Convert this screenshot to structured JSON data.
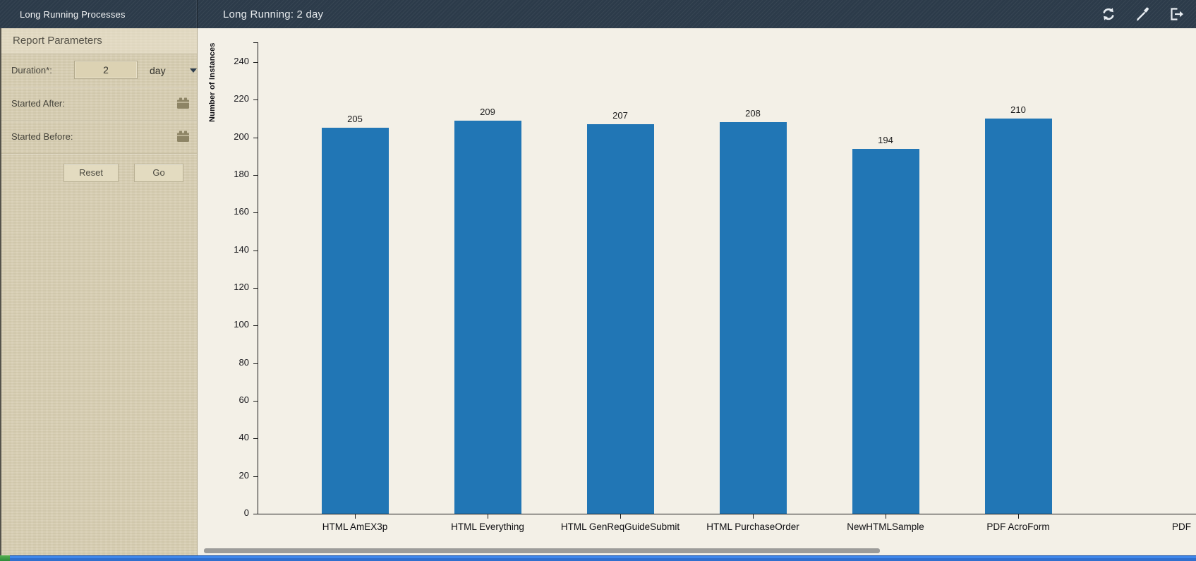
{
  "window": {
    "panel_title": "Long Running Processes",
    "view_title": "Long Running: 2 day"
  },
  "sidebar": {
    "header": "Report Parameters",
    "duration_label": "Duration*:",
    "duration_value": "2",
    "duration_unit": "day",
    "started_after_label": "Started After:",
    "started_before_label": "Started Before:",
    "reset_label": "Reset",
    "go_label": "Go"
  },
  "chart_data": {
    "type": "bar",
    "title": "",
    "xlabel": "",
    "ylabel": "Number of Instances",
    "categories": [
      "HTML AmEX3p",
      "HTML Everything",
      "HTML GenReqGuideSubmit",
      "HTML PurchaseOrder",
      "NewHTMLSample",
      "PDF AcroForm"
    ],
    "values": [
      205,
      209,
      207,
      208,
      194,
      210
    ],
    "partial_next_category": "PDF",
    "ylim": [
      0,
      250
    ],
    "ytick_step": 20,
    "ytick_max": 240,
    "grid": false,
    "legend": "none",
    "bar_color": "#2176b5",
    "background": "#f3f0e7"
  },
  "colors": {
    "header_bg": "#2c3b4a",
    "sidebar_bg": "#d8cfb4",
    "chart_bg": "#f3f0e7",
    "bar_blue": "#2176b5",
    "scroll_thumb": "#9c9c9a",
    "bottom_strip_blue": "#3f87ea",
    "bottom_strip_green": "#3f9e43"
  }
}
